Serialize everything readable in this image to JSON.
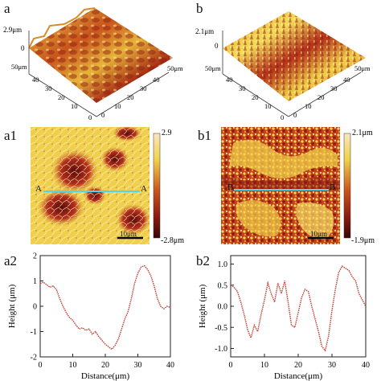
{
  "panels": {
    "a": {
      "label": "a",
      "zmax": "2.9μm",
      "zmin": "0",
      "axis_x": [
        "50μm",
        "40",
        "30",
        "20",
        "10",
        "0"
      ],
      "axis_y": [
        "50μm",
        "40",
        "30",
        "20",
        "10",
        "0"
      ]
    },
    "b": {
      "label": "b",
      "zmax": "2.1μm",
      "zmin": "0",
      "axis_x": [
        "50μm",
        "40",
        "30",
        "20",
        "10",
        "0"
      ],
      "axis_y": [
        "50μm",
        "40",
        "30",
        "20",
        "10",
        "0"
      ]
    },
    "a1": {
      "label": "a1",
      "cb_max": "2.9",
      "cb_min": "-2.8μm",
      "line_start": "A",
      "line_end": "A",
      "scale_bar": "10μm"
    },
    "b1": {
      "label": "b1",
      "cb_max": "2.1μm",
      "cb_min": "-1.9μm",
      "line_start": "B",
      "line_end": "B",
      "scale_bar": "10μm"
    },
    "a2": {
      "label": "a2"
    },
    "b2": {
      "label": "b2"
    }
  },
  "chart_data": [
    {
      "type": "line",
      "panel": "a2",
      "xlabel": "Distance(μm)",
      "ylabel": "Height (μm)",
      "xlim": [
        0,
        40
      ],
      "ylim": [
        -2,
        2
      ],
      "xticks": [
        "0",
        "10",
        "20",
        "30",
        "40"
      ],
      "yticks": [
        "-2",
        "-1",
        "0",
        "1",
        "2"
      ],
      "series_color": "#c0392b",
      "x": [
        0,
        1,
        2,
        3,
        4,
        5,
        6,
        7,
        8,
        9,
        10,
        11,
        12,
        13,
        14,
        15,
        16,
        17,
        18,
        19,
        20,
        21,
        22,
        23,
        24,
        25,
        26,
        27,
        28,
        29,
        30,
        31,
        32,
        33,
        34,
        35,
        36,
        37,
        38,
        39,
        40
      ],
      "y": [
        0.9,
        0.95,
        0.85,
        0.75,
        0.8,
        0.65,
        0.3,
        0.0,
        -0.25,
        -0.45,
        -0.55,
        -0.75,
        -0.9,
        -0.85,
        -0.95,
        -0.9,
        -1.1,
        -1.0,
        -1.2,
        -1.35,
        -1.5,
        -1.6,
        -1.7,
        -1.55,
        -1.3,
        -0.9,
        -0.5,
        -0.2,
        0.3,
        0.9,
        1.3,
        1.55,
        1.6,
        1.45,
        1.2,
        0.8,
        0.3,
        0.0,
        -0.1,
        0.0,
        -0.05
      ]
    },
    {
      "type": "line",
      "panel": "b2",
      "xlabel": "Distance(μm)",
      "ylabel": "Height (μm)",
      "xlim": [
        0,
        40
      ],
      "ylim": [
        -1.2,
        1.2
      ],
      "xticks": [
        "0",
        "10",
        "20",
        "30",
        "40"
      ],
      "yticks": [
        "-1.0",
        "-0.5",
        "0.0",
        "0.5",
        "1.0"
      ],
      "series_color": "#c0392b",
      "x": [
        0,
        1,
        2,
        3,
        4,
        5,
        6,
        7,
        8,
        9,
        10,
        11,
        12,
        13,
        14,
        15,
        16,
        17,
        18,
        19,
        20,
        21,
        22,
        23,
        24,
        25,
        26,
        27,
        28,
        29,
        30,
        31,
        32,
        33,
        34,
        35,
        36,
        37,
        38,
        39,
        40
      ],
      "y": [
        0.5,
        0.45,
        0.35,
        0.1,
        -0.2,
        -0.55,
        -0.75,
        -0.45,
        -0.6,
        -0.2,
        0.15,
        0.55,
        0.3,
        0.1,
        0.55,
        0.3,
        0.6,
        0.1,
        -0.45,
        -0.5,
        -0.15,
        0.2,
        0.4,
        0.35,
        0.0,
        -0.3,
        -0.6,
        -0.95,
        -1.05,
        -0.7,
        -0.1,
        0.4,
        0.8,
        0.95,
        0.9,
        0.85,
        0.7,
        0.6,
        0.3,
        0.15,
        0.0
      ]
    }
  ]
}
